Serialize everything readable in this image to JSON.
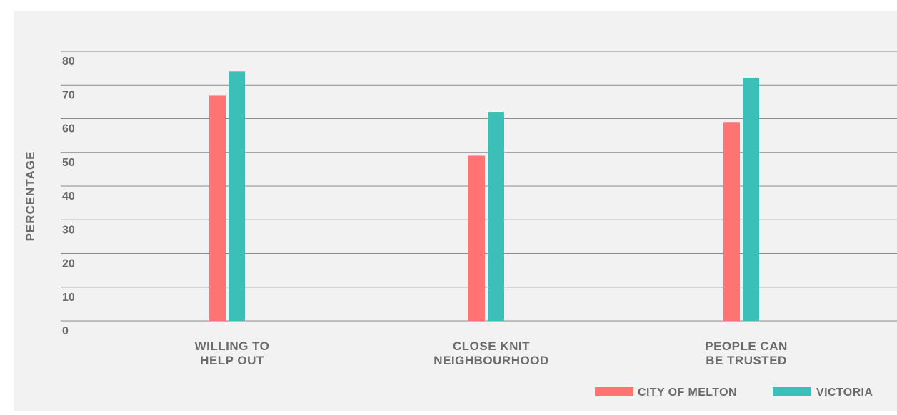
{
  "chart_data": {
    "type": "bar",
    "ylabel": "PERCENTAGE",
    "ylim": [
      0,
      80
    ],
    "yticks": [
      "0",
      "10",
      "20",
      "30",
      "40",
      "50",
      "60",
      "70",
      "80"
    ],
    "categories": [
      [
        "WILLING TO",
        "HELP OUT"
      ],
      [
        "CLOSE KNIT",
        "NEIGHBOURHOOD"
      ],
      [
        "PEOPLE CAN",
        "BE TRUSTED"
      ]
    ],
    "series": [
      {
        "name": "CITY OF MELTON",
        "color": "#ff7373",
        "values": [
          67,
          49,
          59
        ]
      },
      {
        "name": "VICTORIA",
        "color": "#3bbfb8",
        "values": [
          74,
          62,
          72
        ]
      }
    ],
    "grid": true,
    "legend_position": "bottom-right",
    "background_color": "#f2f2f2",
    "grid_color": "#8c8c8c"
  }
}
